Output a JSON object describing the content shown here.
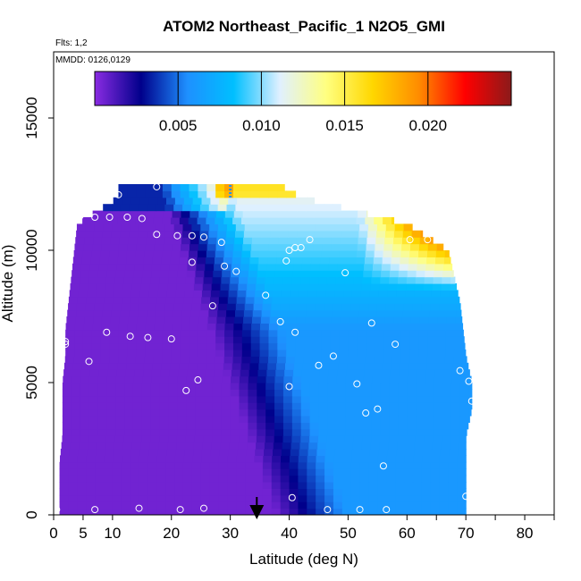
{
  "chart_data": {
    "type": "heatmap",
    "title": "ATOM2 Northeast_Pacific_1 N2O5_GMI",
    "annotations": [
      "Flts: 1,2",
      "MMDD: 0126,0129"
    ],
    "xlabel": "Latitude (deg N)",
    "ylabel": "Altitude (m)",
    "xlim": [
      0,
      85
    ],
    "ylim": [
      0,
      17500
    ],
    "x_ticks": [
      0,
      5,
      10,
      20,
      30,
      40,
      50,
      60,
      70,
      80
    ],
    "x_minor_ticks": [
      65,
      75,
      85
    ],
    "y_ticks": [
      0,
      5000,
      10000,
      15000
    ],
    "colorbar": {
      "range": [
        0,
        0.025
      ],
      "ticks": [
        "0.005",
        "0.010",
        "0.015",
        "0.020"
      ],
      "tick_values": [
        0.005,
        0.01,
        0.015,
        0.02
      ],
      "colors": [
        "#8a2be2",
        "#00008b",
        "#1e90ff",
        "#00bfff",
        "#e0f0ff",
        "#ffff80",
        "#ffd700",
        "#ff8c00",
        "#ff0000",
        "#8b1a1a"
      ]
    },
    "arrow_x": 34.5,
    "dashed_marker_x": 30,
    "field_profile": [
      {
        "alt": 0,
        "lat_min": 1,
        "lat_max": 70
      },
      {
        "alt": 1000,
        "lat_min": 1,
        "lat_max": 70
      },
      {
        "alt": 2000,
        "lat_min": 1,
        "lat_max": 70
      },
      {
        "alt": 3000,
        "lat_min": 1.5,
        "lat_max": 70
      },
      {
        "alt": 4000,
        "lat_min": 1.5,
        "lat_max": 71
      },
      {
        "alt": 5000,
        "lat_min": 1.5,
        "lat_max": 71
      },
      {
        "alt": 6000,
        "lat_min": 2,
        "lat_max": 70
      },
      {
        "alt": 7000,
        "lat_min": 2,
        "lat_max": 69.5
      },
      {
        "alt": 8000,
        "lat_min": 2.5,
        "lat_max": 69
      },
      {
        "alt": 9000,
        "lat_min": 3,
        "lat_max": 68
      },
      {
        "alt": 10000,
        "lat_min": 3.5,
        "lat_max": 67
      },
      {
        "alt": 11000,
        "lat_min": 4,
        "lat_max": 60
      },
      {
        "alt": 12000,
        "lat_min": 11,
        "lat_max": 42
      },
      {
        "alt": 12400,
        "lat_min": 11,
        "lat_max": 39
      }
    ],
    "points": [
      {
        "lat": 0.5,
        "alt": 200
      },
      {
        "lat": 7,
        "alt": 200
      },
      {
        "lat": 14.5,
        "alt": 250
      },
      {
        "lat": 21.5,
        "alt": 200
      },
      {
        "lat": 25.5,
        "alt": 250
      },
      {
        "lat": 40.5,
        "alt": 650
      },
      {
        "lat": 46.5,
        "alt": 200
      },
      {
        "lat": 52,
        "alt": 200
      },
      {
        "lat": 56.5,
        "alt": 200
      },
      {
        "lat": 70,
        "alt": 700
      },
      {
        "lat": 56,
        "alt": 1850
      },
      {
        "lat": 53,
        "alt": 3850
      },
      {
        "lat": 55,
        "alt": 4000
      },
      {
        "lat": 71,
        "alt": 4300
      },
      {
        "lat": 51.5,
        "alt": 4950
      },
      {
        "lat": 40,
        "alt": 4850
      },
      {
        "lat": 22.5,
        "alt": 4700
      },
      {
        "lat": 24.5,
        "alt": 5100
      },
      {
        "lat": 6,
        "alt": 5800
      },
      {
        "lat": 45,
        "alt": 5650
      },
      {
        "lat": 47.5,
        "alt": 6000
      },
      {
        "lat": 69,
        "alt": 5450
      },
      {
        "lat": 70.5,
        "alt": 5050
      },
      {
        "lat": 58,
        "alt": 6450
      },
      {
        "lat": 2,
        "alt": 6450
      },
      {
        "lat": 2,
        "alt": 6550
      },
      {
        "lat": 9,
        "alt": 6900
      },
      {
        "lat": 13,
        "alt": 6750
      },
      {
        "lat": 16,
        "alt": 6700
      },
      {
        "lat": 20,
        "alt": 6650
      },
      {
        "lat": 41,
        "alt": 6900
      },
      {
        "lat": 38.5,
        "alt": 7300
      },
      {
        "lat": 54,
        "alt": 7250
      },
      {
        "lat": 27,
        "alt": 7900
      },
      {
        "lat": 36,
        "alt": 8300
      },
      {
        "lat": 31,
        "alt": 9200
      },
      {
        "lat": 29,
        "alt": 9400
      },
      {
        "lat": 39.5,
        "alt": 9600
      },
      {
        "lat": 49.5,
        "alt": 9150
      },
      {
        "lat": 23.5,
        "alt": 9550
      },
      {
        "lat": 41,
        "alt": 10100
      },
      {
        "lat": 42,
        "alt": 10100
      },
      {
        "lat": 40,
        "alt": 10000
      },
      {
        "lat": 43.5,
        "alt": 10400
      },
      {
        "lat": 28.5,
        "alt": 10300
      },
      {
        "lat": 25.5,
        "alt": 10500
      },
      {
        "lat": 23.5,
        "alt": 10550
      },
      {
        "lat": 21,
        "alt": 10550
      },
      {
        "lat": 17.5,
        "alt": 10600
      },
      {
        "lat": 60.5,
        "alt": 10400
      },
      {
        "lat": 63.5,
        "alt": 10400
      },
      {
        "lat": 65.5,
        "alt": 10950
      },
      {
        "lat": 4,
        "alt": 11250
      },
      {
        "lat": 4.5,
        "alt": 11300
      },
      {
        "lat": 7,
        "alt": 11250
      },
      {
        "lat": 9.5,
        "alt": 11250
      },
      {
        "lat": 12.5,
        "alt": 11250
      },
      {
        "lat": 15,
        "alt": 11200
      },
      {
        "lat": 11,
        "alt": 12100
      },
      {
        "lat": 17.5,
        "alt": 12400
      }
    ]
  }
}
